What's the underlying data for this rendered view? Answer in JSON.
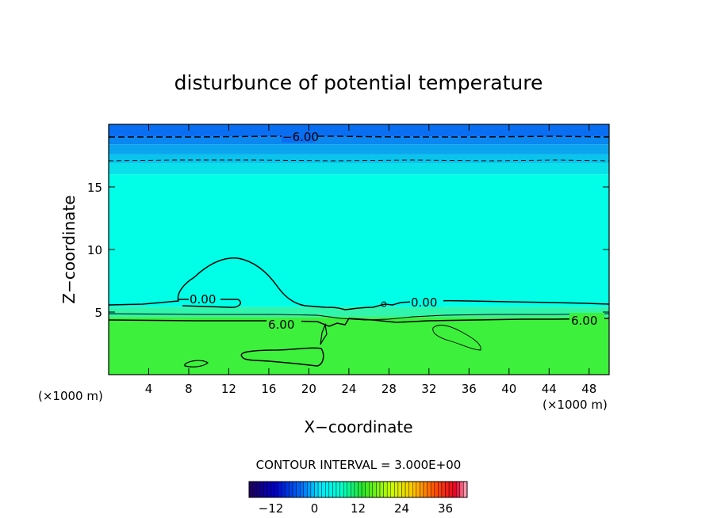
{
  "chart_data": {
    "type": "heatmap",
    "title": "disturbunce of potential temperature",
    "xlabel": "X−coordinate",
    "ylabel": "Z−coordinate",
    "x_unit_left": "(×1000 m)",
    "x_unit_right": "(×1000 m)",
    "xlim": [
      0,
      50
    ],
    "ylim": [
      0,
      20
    ],
    "x_ticks": [
      4,
      8,
      12,
      16,
      20,
      24,
      28,
      32,
      36,
      40,
      44,
      48
    ],
    "x_tick_labels": [
      "4",
      "8",
      "12",
      "16",
      "20",
      "24",
      "28",
      "32",
      "36",
      "40",
      "44",
      "48"
    ],
    "y_ticks": [
      5,
      10,
      15
    ],
    "y_tick_labels": [
      "5",
      "10",
      "15"
    ],
    "contour_interval_text": "CONTOUR INTERVAL = 3.000E+00",
    "contour_interval": 3.0,
    "contour_labels": [
      "−6.00",
      "0.00",
      "6.00",
      "0.00",
      "6.00"
    ],
    "color_bands": [
      {
        "z0": 19.0,
        "z1": 20.0,
        "color": "#0a6ef2"
      },
      {
        "z0": 18.4,
        "z1": 19.0,
        "color": "#0a87f0"
      },
      {
        "z0": 17.6,
        "z1": 18.4,
        "color": "#0aa5ee"
      },
      {
        "z0": 16.9,
        "z1": 17.6,
        "color": "#0ac4ec"
      },
      {
        "z0": 16.0,
        "z1": 16.9,
        "color": "#0ae0ea"
      },
      {
        "z0": 5.4,
        "z1": 16.0,
        "color": "#00ffe6"
      },
      {
        "z0": 4.6,
        "z1": 5.4,
        "color": "#31f5ac"
      },
      {
        "z0": 0.0,
        "z1": 4.6,
        "color": "#3cf03c"
      }
    ],
    "colorbar": {
      "ticks": [
        -12,
        0,
        12,
        24,
        36
      ],
      "tick_labels": [
        "−12",
        "0",
        "12",
        "24",
        "36"
      ],
      "vmin": -18,
      "vmax": 42
    }
  }
}
